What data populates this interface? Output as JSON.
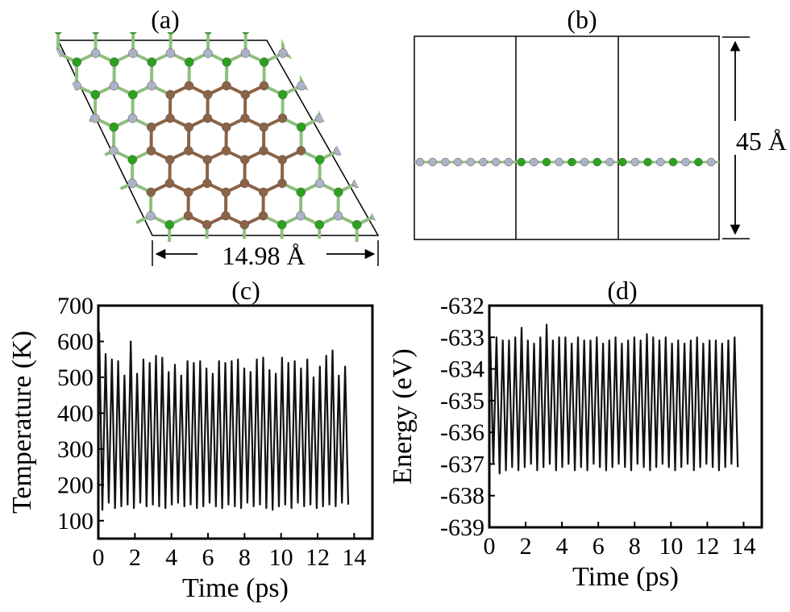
{
  "panels": {
    "a": {
      "label": "(a)",
      "dimension": "14.98 Å"
    },
    "b": {
      "label": "(b)",
      "dimension": "45 Å"
    }
  },
  "colors": {
    "carbon": "#8b6346",
    "nitrogen": "#aeb2c8",
    "boron": "#2aa21e",
    "line": "#000000"
  },
  "chart_data": [
    {
      "panel": "(c)",
      "type": "line",
      "xlabel": "Time (ps)",
      "ylabel": "Temperature (K)",
      "xlim": [
        0,
        15
      ],
      "ylim": [
        50,
        700
      ],
      "xticks": [
        "0",
        "2",
        "4",
        "6",
        "8",
        "10",
        "12",
        "14"
      ],
      "yticks": [
        "100",
        "200",
        "300",
        "400",
        "500",
        "600",
        "700"
      ],
      "grid": false,
      "series": [
        {
          "oscillation_period_ps": 0.345,
          "peak_values": [
            625,
            565,
            550,
            545,
            505,
            600,
            510,
            550,
            540,
            560,
            555,
            515,
            535,
            505,
            545,
            540,
            545,
            525,
            510,
            545,
            540,
            545,
            550,
            525,
            515,
            550,
            555,
            520,
            510,
            555,
            540,
            545,
            525,
            550,
            500,
            530,
            560,
            575,
            505,
            530
          ],
          "trough_values": [
            130,
            150,
            135,
            140,
            145,
            135,
            150,
            140,
            145,
            140,
            135,
            145,
            150,
            140,
            145,
            135,
            140,
            150,
            140,
            135,
            145,
            140,
            135,
            150,
            140,
            145,
            135,
            130,
            140,
            145,
            135,
            150,
            140,
            145,
            135,
            140,
            145,
            140,
            150,
            145
          ]
        }
      ]
    },
    {
      "panel": "(d)",
      "type": "line",
      "xlabel": "Time (ps)",
      "ylabel": "Energy (eV)",
      "xlim": [
        0,
        15
      ],
      "ylim": [
        -639,
        -632
      ],
      "xticks": [
        "0",
        "2",
        "4",
        "6",
        "8",
        "10",
        "12",
        "14"
      ],
      "yticks": [
        "-632",
        "-633",
        "-634",
        "-635",
        "-636",
        "-637",
        "-638",
        "-639"
      ],
      "grid": false,
      "series": [
        {
          "oscillation_period_ps": 0.345,
          "peak_values": [
            -633.0,
            -633.0,
            -633.1,
            -633.1,
            -633.0,
            -632.7,
            -633.1,
            -633.2,
            -633.0,
            -632.6,
            -633.1,
            -633.0,
            -633.0,
            -633.2,
            -633.0,
            -633.1,
            -633.1,
            -633.0,
            -633.2,
            -633.1,
            -633.0,
            -633.2,
            -633.1,
            -633.0,
            -633.1,
            -632.9,
            -633.0,
            -633.1,
            -633.0,
            -633.2,
            -633.1,
            -633.2,
            -633.1,
            -633.0,
            -633.2,
            -633.1,
            -633.1,
            -633.2,
            -633.1,
            -633.0
          ],
          "trough_values": [
            -637.0,
            -637.3,
            -637.2,
            -637.1,
            -637.2,
            -637.1,
            -637.0,
            -637.2,
            -637.1,
            -637.0,
            -637.2,
            -637.1,
            -637.0,
            -637.2,
            -637.1,
            -637.2,
            -637.0,
            -637.1,
            -637.2,
            -637.1,
            -637.0,
            -637.1,
            -637.2,
            -637.0,
            -637.1,
            -637.2,
            -637.1,
            -637.0,
            -637.1,
            -637.2,
            -637.1,
            -637.0,
            -637.2,
            -637.1,
            -637.0,
            -637.1,
            -637.2,
            -637.1,
            -637.0,
            -637.1
          ]
        }
      ]
    }
  ]
}
